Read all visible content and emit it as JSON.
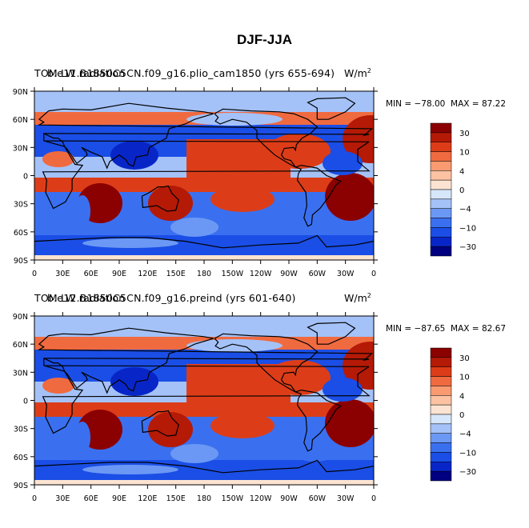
{
  "title": "DJF-JJA",
  "colorbar": {
    "colors": [
      "#000080",
      "#0826c8",
      "#1a4ee6",
      "#3a70f0",
      "#6b98f4",
      "#a4c2f8",
      "#d6e6fb",
      "#fde4d2",
      "#fcc2a2",
      "#fa9a70",
      "#f06a40",
      "#dc3d18",
      "#b41a06",
      "#8b0000"
    ],
    "labels": [
      "30",
      "10",
      "4",
      "0",
      "−4",
      "−10",
      "−30"
    ]
  },
  "map": {
    "lat_labels": [
      "90N",
      "60N",
      "30N",
      "0",
      "30S",
      "60S",
      "90S"
    ],
    "lon_labels": [
      "0",
      "30E",
      "60E",
      "90E",
      "120E",
      "150E",
      "180",
      "150W",
      "120W",
      "90W",
      "60W",
      "30W",
      "0"
    ]
  },
  "panels": [
    {
      "title_left": "TOM LW radiation",
      "title_overlay": "b.e11.B1850C5CN.f09_g16.plio_cam1850 (yrs 655-694)",
      "units": "W/m",
      "units_sup": "2",
      "min_label": "MIN = −78.00",
      "max_label": "MAX =  87.22"
    },
    {
      "title_left": "TOM LW radiation",
      "title_overlay": "b.e12.B1850C5CN.f09_g16.preind (yrs 601-640)",
      "units": "W/m",
      "units_sup": "2",
      "min_label": "MIN = −87.65",
      "max_label": "MAX =  82.67"
    }
  ]
}
